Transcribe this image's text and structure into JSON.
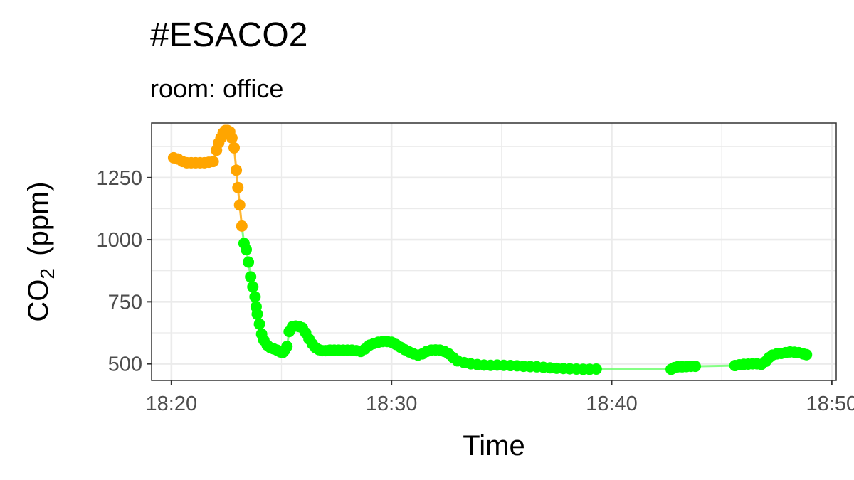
{
  "chart_data": {
    "type": "scatter",
    "title": "#ESACO2",
    "subtitle": "room: office",
    "xlabel": "Time",
    "ylabel": {
      "main": "CO",
      "sub": "2",
      "unit": "(ppm)"
    },
    "x_unit": "minutes after 18:00",
    "xlim": [
      19.1,
      50.2
    ],
    "ylim": [
      433,
      1470
    ],
    "x_ticks": [
      {
        "value": 20,
        "label": "18:20"
      },
      {
        "value": 30,
        "label": "18:30"
      },
      {
        "value": 40,
        "label": "18:40"
      },
      {
        "value": 50,
        "label": "18:50"
      }
    ],
    "y_ticks": [
      {
        "value": 500,
        "label": "500"
      },
      {
        "value": 750,
        "label": "750"
      },
      {
        "value": 1000,
        "label": "1000"
      },
      {
        "value": 1250,
        "label": "1250"
      }
    ],
    "grid": true,
    "colors": {
      "high": "#FFA500",
      "normal": "#00FF00",
      "normal_line": "#66FF66",
      "axis_text": "#4D4D4D",
      "grid": "#EBEBEB"
    },
    "threshold": 1000,
    "series": [
      {
        "points": [
          [
            20.1,
            1330
          ],
          [
            20.3,
            1325
          ],
          [
            20.5,
            1315
          ],
          [
            20.7,
            1310
          ],
          [
            20.9,
            1310
          ],
          [
            21.1,
            1310
          ],
          [
            21.3,
            1310
          ],
          [
            21.5,
            1310
          ],
          [
            21.7,
            1312
          ],
          [
            21.9,
            1315
          ],
          [
            22.05,
            1360
          ],
          [
            22.15,
            1390
          ],
          [
            22.25,
            1410
          ],
          [
            22.35,
            1430
          ],
          [
            22.45,
            1440
          ],
          [
            22.55,
            1440
          ],
          [
            22.65,
            1435
          ],
          [
            22.75,
            1410
          ],
          [
            22.85,
            1370
          ],
          [
            22.95,
            1280
          ],
          [
            23.02,
            1210
          ],
          [
            23.1,
            1140
          ],
          [
            23.2,
            1055
          ],
          [
            23.3,
            985
          ],
          [
            23.4,
            960
          ],
          [
            23.5,
            910
          ],
          [
            23.6,
            850
          ],
          [
            23.7,
            810
          ],
          [
            23.8,
            770
          ],
          [
            23.85,
            730
          ],
          [
            23.9,
            700
          ],
          [
            24.0,
            660
          ],
          [
            24.1,
            620
          ],
          [
            24.2,
            595
          ],
          [
            24.35,
            575
          ],
          [
            24.5,
            565
          ],
          [
            24.65,
            560
          ],
          [
            24.8,
            555
          ],
          [
            24.95,
            548
          ],
          [
            25.05,
            545
          ],
          [
            25.15,
            555
          ],
          [
            25.25,
            570
          ],
          [
            25.35,
            630
          ],
          [
            25.5,
            650
          ],
          [
            25.65,
            652
          ],
          [
            25.8,
            650
          ],
          [
            25.95,
            645
          ],
          [
            26.1,
            625
          ],
          [
            26.25,
            600
          ],
          [
            26.4,
            580
          ],
          [
            26.55,
            565
          ],
          [
            26.7,
            557
          ],
          [
            26.85,
            553
          ],
          [
            27.0,
            553
          ],
          [
            27.2,
            555
          ],
          [
            27.4,
            555
          ],
          [
            27.6,
            555
          ],
          [
            27.8,
            555
          ],
          [
            28.0,
            555
          ],
          [
            28.2,
            555
          ],
          [
            28.4,
            553
          ],
          [
            28.6,
            550
          ],
          [
            28.8,
            560
          ],
          [
            29.0,
            575
          ],
          [
            29.2,
            582
          ],
          [
            29.4,
            587
          ],
          [
            29.6,
            590
          ],
          [
            29.8,
            590
          ],
          [
            30.0,
            587
          ],
          [
            30.2,
            578
          ],
          [
            30.4,
            567
          ],
          [
            30.6,
            557
          ],
          [
            30.8,
            548
          ],
          [
            31.0,
            540
          ],
          [
            31.2,
            535
          ],
          [
            31.4,
            540
          ],
          [
            31.6,
            550
          ],
          [
            31.8,
            555
          ],
          [
            32.0,
            556
          ],
          [
            32.2,
            555
          ],
          [
            32.4,
            550
          ],
          [
            32.6,
            540
          ],
          [
            32.8,
            525
          ],
          [
            33.0,
            512
          ],
          [
            33.3,
            505
          ],
          [
            33.6,
            500
          ],
          [
            33.9,
            497
          ],
          [
            34.2,
            495
          ],
          [
            34.5,
            494
          ],
          [
            34.8,
            495
          ],
          [
            35.1,
            494
          ],
          [
            35.4,
            493
          ],
          [
            35.7,
            492
          ],
          [
            36.0,
            490
          ],
          [
            36.3,
            489
          ],
          [
            36.6,
            488
          ],
          [
            36.9,
            486
          ],
          [
            37.2,
            484
          ],
          [
            37.5,
            482
          ],
          [
            37.8,
            481
          ],
          [
            38.1,
            480
          ],
          [
            38.4,
            479
          ],
          [
            38.7,
            478
          ],
          [
            39.0,
            478
          ],
          [
            39.3,
            479
          ],
          [
            42.7,
            478
          ],
          [
            42.85,
            485
          ],
          [
            43.0,
            488
          ],
          [
            43.2,
            488
          ],
          [
            43.4,
            489
          ],
          [
            43.6,
            490
          ],
          [
            43.8,
            490
          ],
          [
            45.6,
            493
          ],
          [
            45.8,
            496
          ],
          [
            46.0,
            498
          ],
          [
            46.2,
            499
          ],
          [
            46.4,
            500
          ],
          [
            46.6,
            500
          ],
          [
            46.8,
            498
          ],
          [
            47.0,
            510
          ],
          [
            47.15,
            525
          ],
          [
            47.3,
            535
          ],
          [
            47.5,
            540
          ],
          [
            47.7,
            542
          ],
          [
            47.9,
            545
          ],
          [
            48.1,
            548
          ],
          [
            48.3,
            547
          ],
          [
            48.5,
            545
          ],
          [
            48.7,
            540
          ],
          [
            48.85,
            537
          ]
        ]
      }
    ]
  }
}
